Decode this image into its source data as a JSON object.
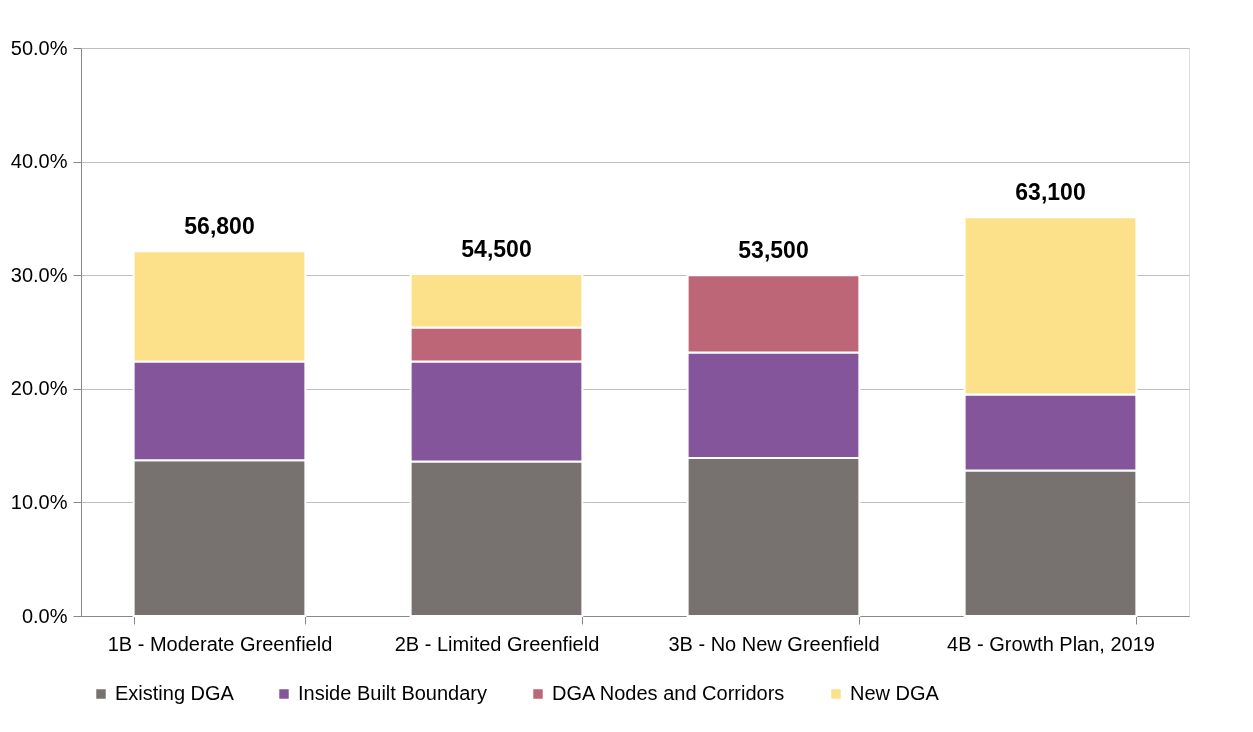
{
  "chart_data": {
    "type": "bar",
    "stacked": true,
    "categories": [
      "1B - Moderate Greenfield",
      "2B - Limited Greenfield",
      "3B - No New Greenfield",
      "4B - Growth Plan, 2019"
    ],
    "series": [
      {
        "name": "Existing DGA",
        "color": "#77726f",
        "values": [
          13.7,
          13.6,
          13.9,
          12.8
        ]
      },
      {
        "name": "Inside Built Boundary",
        "color": "#85559b",
        "values": [
          8.7,
          8.8,
          9.3,
          6.7
        ]
      },
      {
        "name": "DGA Nodes and Corridors",
        "color": "#bc6677",
        "values": [
          null,
          3.0,
          6.8,
          null
        ]
      },
      {
        "name": "New DGA",
        "color": "#fce08a",
        "values": [
          9.7,
          4.7,
          null,
          15.6
        ]
      }
    ],
    "annotations": [
      {
        "text": "56,800",
        "x": "1B - Moderate Greenfield",
        "y": 32.1
      },
      {
        "text": "54,500",
        "x": "2B - Limited Greenfield",
        "y": 30.1
      },
      {
        "text": "53,500",
        "x": "3B - No New Greenfield",
        "y": 30.0
      },
      {
        "text": "63,100",
        "x": "4B - Growth Plan, 2019",
        "y": 35.1
      }
    ],
    "ylim": [
      0,
      50
    ],
    "yticks": [
      {
        "value": 0,
        "label": "0.0%"
      },
      {
        "value": 10,
        "label": "10.0%"
      },
      {
        "value": 20,
        "label": "20.0%"
      },
      {
        "value": 30,
        "label": "30.0%"
      },
      {
        "value": 40,
        "label": "40.0%"
      },
      {
        "value": 50,
        "label": "50.0%"
      }
    ],
    "grid": "y",
    "legend": "bottom"
  }
}
